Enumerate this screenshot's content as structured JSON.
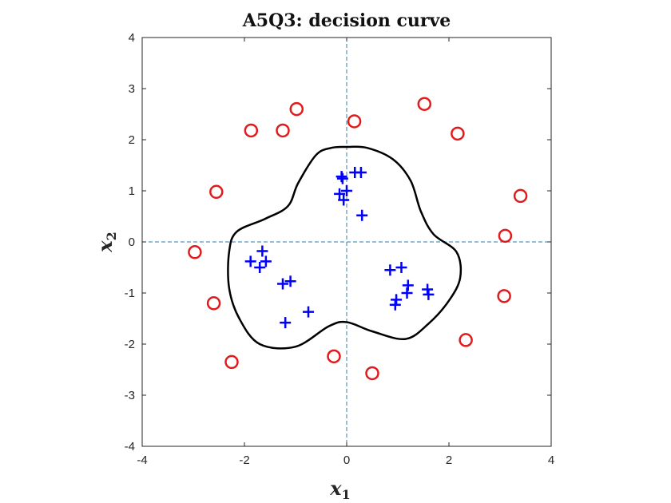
{
  "chart_data": {
    "type": "scatter",
    "title": "A5Q3:  decision curve",
    "xlabel": "x",
    "xlabel_sub": "1",
    "ylabel": "x",
    "ylabel_sub": "2",
    "xlim": [
      -4,
      4
    ],
    "ylim": [
      -4,
      4
    ],
    "xticks": [
      -4,
      -2,
      0,
      2,
      4
    ],
    "yticks": [
      -4,
      -3,
      -2,
      -1,
      0,
      1,
      2,
      3,
      4
    ],
    "xtick_labels": [
      "-4",
      "-2",
      "0",
      "2",
      "4"
    ],
    "ytick_labels": [
      "-4",
      "-3",
      "-2",
      "-1",
      "0",
      "1",
      "2",
      "3",
      "4"
    ],
    "grid": false,
    "reference_lines": {
      "x": 0,
      "y": 0,
      "style": "dashed",
      "color": "#2a7fa8"
    },
    "series": [
      {
        "marker": "plus",
        "color": "#0000ff",
        "points": [
          [
            0.16,
            1.36
          ],
          [
            0.28,
            1.36
          ],
          [
            -0.1,
            1.28
          ],
          [
            -0.08,
            1.24
          ],
          [
            0.0,
            1.0
          ],
          [
            -0.14,
            0.94
          ],
          [
            -0.06,
            0.82
          ],
          [
            0.3,
            0.52
          ],
          [
            -1.65,
            -0.18
          ],
          [
            -1.88,
            -0.38
          ],
          [
            -1.58,
            -0.38
          ],
          [
            -1.7,
            -0.5
          ],
          [
            -1.25,
            -0.82
          ],
          [
            -1.1,
            -0.77
          ],
          [
            -1.2,
            -1.58
          ],
          [
            -0.75,
            -1.37
          ],
          [
            0.85,
            -0.55
          ],
          [
            1.07,
            -0.5
          ],
          [
            1.2,
            -0.85
          ],
          [
            1.18,
            -1.0
          ],
          [
            0.97,
            -1.13
          ],
          [
            0.95,
            -1.23
          ],
          [
            1.58,
            -0.93
          ],
          [
            1.6,
            -1.03
          ]
        ]
      },
      {
        "marker": "circle",
        "color": "#e31a1c",
        "points": [
          [
            -1.87,
            2.18
          ],
          [
            -1.25,
            2.18
          ],
          [
            -0.98,
            2.6
          ],
          [
            0.15,
            2.36
          ],
          [
            1.52,
            2.7
          ],
          [
            2.17,
            2.12
          ],
          [
            -2.55,
            0.98
          ],
          [
            3.4,
            0.9
          ],
          [
            3.1,
            0.12
          ],
          [
            -2.97,
            -0.2
          ],
          [
            -2.6,
            -1.2
          ],
          [
            3.08,
            -1.06
          ],
          [
            -2.25,
            -2.35
          ],
          [
            -0.25,
            -2.24
          ],
          [
            0.5,
            -2.57
          ],
          [
            2.33,
            -1.92
          ]
        ]
      }
    ],
    "decision_curve": {
      "color": "#000000",
      "points": [
        [
          0.0,
          1.86
        ],
        [
          0.4,
          1.84
        ],
        [
          0.9,
          1.62
        ],
        [
          1.25,
          1.2
        ],
        [
          1.45,
          0.6
        ],
        [
          1.7,
          0.15
        ],
        [
          2.15,
          -0.2
        ],
        [
          2.22,
          -0.7
        ],
        [
          2.0,
          -1.15
        ],
        [
          1.6,
          -1.6
        ],
        [
          1.15,
          -1.9
        ],
        [
          0.5,
          -1.75
        ],
        [
          0.0,
          -1.57
        ],
        [
          -0.35,
          -1.65
        ],
        [
          -1.0,
          -2.05
        ],
        [
          -1.7,
          -2.0
        ],
        [
          -2.1,
          -1.5
        ],
        [
          -2.3,
          -0.9
        ],
        [
          -2.3,
          -0.2
        ],
        [
          -2.15,
          0.2
        ],
        [
          -1.6,
          0.45
        ],
        [
          -1.15,
          0.7
        ],
        [
          -0.95,
          1.15
        ],
        [
          -0.6,
          1.7
        ],
        [
          -0.3,
          1.84
        ],
        [
          0.0,
          1.86
        ]
      ]
    }
  }
}
